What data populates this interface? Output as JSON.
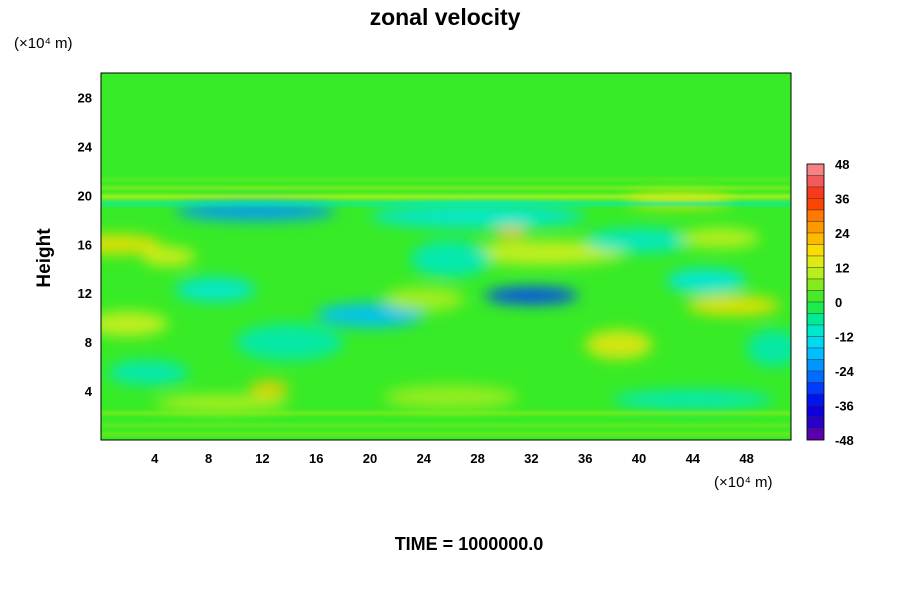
{
  "chart_data": {
    "type": "heatmap",
    "title": "zonal velocity",
    "ylabel": "Height",
    "x_unit": "(×10⁴ m)",
    "y_unit": "(×10⁴ m)",
    "footer": "TIME = 1000000.0",
    "xlim": [
      0,
      51.3
    ],
    "ylim": [
      0,
      30
    ],
    "x_ticks": [
      4,
      8,
      12,
      16,
      20,
      24,
      28,
      32,
      36,
      40,
      44,
      48
    ],
    "y_ticks": [
      4,
      8,
      12,
      16,
      20,
      24,
      28
    ],
    "colorbar": {
      "min": -48,
      "max": 48,
      "step": 4,
      "ticks": [
        48,
        36,
        24,
        12,
        0,
        -12,
        -24,
        -36,
        -48
      ]
    },
    "background_value": 1,
    "features": [
      {
        "x": 11.5,
        "y": 18.7,
        "rx": 6,
        "ry": 0.8,
        "v": -22
      },
      {
        "x": 32.0,
        "y": 11.8,
        "rx": 3.5,
        "ry": 0.7,
        "v": -30
      },
      {
        "x": 20.0,
        "y": 10.2,
        "rx": 4,
        "ry": 1.0,
        "v": -18
      },
      {
        "x": 30.5,
        "y": 17.0,
        "rx": 1.2,
        "ry": 0.5,
        "v": 22
      },
      {
        "x": 12.5,
        "y": 4.2,
        "rx": 1.5,
        "ry": 0.6,
        "v": 20
      },
      {
        "x": 43.0,
        "y": 19.6,
        "rx": 4,
        "ry": 0.6,
        "v": 16
      },
      {
        "x": 47.0,
        "y": 11.0,
        "rx": 3.5,
        "ry": 0.8,
        "v": 17
      },
      {
        "x": 1.0,
        "y": 16.0,
        "rx": 3.5,
        "ry": 0.8,
        "v": 17
      },
      {
        "x": 38.5,
        "y": 7.8,
        "rx": 2.5,
        "ry": 1.2,
        "v": 15
      },
      {
        "x": 5.0,
        "y": 15.0,
        "rx": 2.0,
        "ry": 0.8,
        "v": 13
      },
      {
        "x": 33.0,
        "y": 15.3,
        "rx": 6,
        "ry": 1.0,
        "v": 12
      },
      {
        "x": 2.0,
        "y": 9.5,
        "rx": 3.0,
        "ry": 1.0,
        "v": 12
      },
      {
        "x": 26.0,
        "y": 14.8,
        "rx": 3,
        "ry": 1.5,
        "v": -9
      },
      {
        "x": 8.5,
        "y": 12.3,
        "rx": 3,
        "ry": 1.0,
        "v": -11
      },
      {
        "x": 3.5,
        "y": 5.5,
        "rx": 3,
        "ry": 1.0,
        "v": -9
      },
      {
        "x": 45.0,
        "y": 13.0,
        "rx": 3,
        "ry": 1.0,
        "v": -12
      },
      {
        "x": 28.0,
        "y": 18.3,
        "rx": 8,
        "ry": 1.0,
        "v": -11
      },
      {
        "x": 44.0,
        "y": 3.3,
        "rx": 6,
        "ry": 0.8,
        "v": -9
      },
      {
        "x": 40.0,
        "y": 16.3,
        "rx": 4,
        "ry": 1.0,
        "v": -10
      },
      {
        "x": 14.0,
        "y": 8.0,
        "rx": 4,
        "ry": 1.5,
        "v": -8
      },
      {
        "x": 26.0,
        "y": 3.5,
        "rx": 5,
        "ry": 1.0,
        "v": 8
      },
      {
        "x": 50.0,
        "y": 7.5,
        "rx": 2,
        "ry": 1.5,
        "v": -8
      },
      {
        "x": 24.0,
        "y": 11.5,
        "rx": 3,
        "ry": 1.0,
        "v": 9
      },
      {
        "x": 9.0,
        "y": 3.0,
        "rx": 5,
        "ry": 0.7,
        "v": 10
      },
      {
        "x": 46.0,
        "y": 16.5,
        "rx": 3,
        "ry": 0.8,
        "v": 11
      }
    ],
    "bands": [
      {
        "y": 19.9,
        "h": 0.35,
        "v": 12
      },
      {
        "y": 20.6,
        "h": 0.25,
        "v": 9
      },
      {
        "y": 19.3,
        "h": 0.3,
        "v": -10
      },
      {
        "y": 2.2,
        "h": 0.3,
        "v": 7
      },
      {
        "y": 1.2,
        "h": 0.3,
        "v": 5
      },
      {
        "y": 0.5,
        "h": 0.3,
        "v": 6
      },
      {
        "y": 21.3,
        "h": 0.2,
        "v": 5
      }
    ]
  }
}
